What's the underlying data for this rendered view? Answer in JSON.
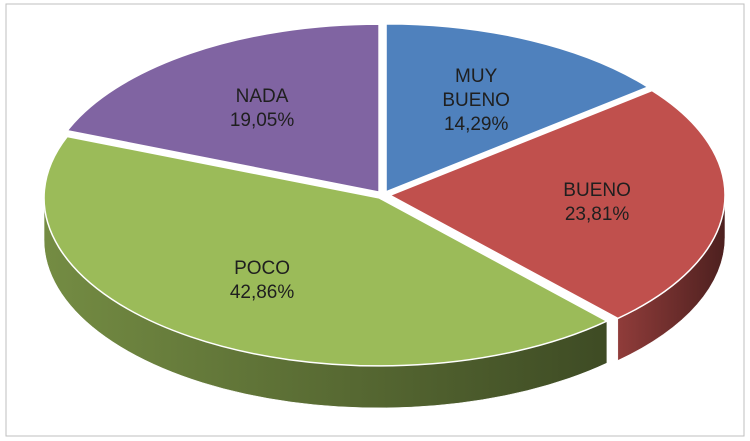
{
  "chart_data": {
    "type": "pie",
    "categories": [
      "MUY BUENO",
      "BUENO",
      "POCO",
      "NADA"
    ],
    "values": [
      14.29,
      23.81,
      42.86,
      19.05
    ],
    "value_labels": [
      "14,29%",
      "23,81%",
      "42,86%",
      "19,05%"
    ],
    "colors": [
      "#4f81bd",
      "#c0504d",
      "#9bbb59",
      "#8064a2"
    ]
  }
}
